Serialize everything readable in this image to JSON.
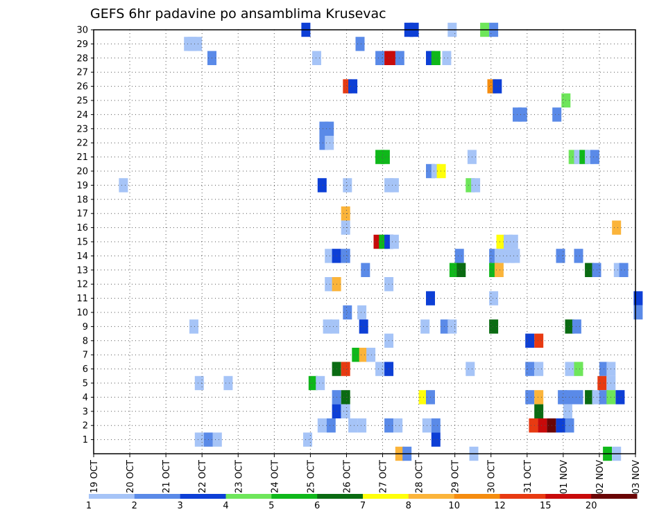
{
  "chart_data": {
    "type": "heatmap",
    "title": "GEFS 6hr padavine po ansamblima Krusevac",
    "xlabel": "",
    "ylabel": "",
    "ylim": [
      0,
      30
    ],
    "x_tick_labels": [
      "19 OCT",
      "20 OCT",
      "21 OCT",
      "22 OCT",
      "23 OCT",
      "24 OCT",
      "25 OCT",
      "26 OCT",
      "27 OCT",
      "28 OCT",
      "29 OCT",
      "30 OCT",
      "31 OCT",
      "01 NOV",
      "02 NOV",
      "03 NOV"
    ],
    "y_tick_labels": [
      "1",
      "2",
      "3",
      "4",
      "5",
      "6",
      "7",
      "8",
      "9",
      "10",
      "11",
      "12",
      "13",
      "14",
      "15",
      "16",
      "17",
      "18",
      "19",
      "20",
      "21",
      "22",
      "23",
      "24",
      "25",
      "26",
      "27",
      "28",
      "29",
      "30"
    ],
    "grid": true,
    "legend_placement": "bottom",
    "legend": {
      "labels": [
        "1",
        "2",
        "3",
        "4",
        "5",
        "6",
        "7",
        "8",
        "10",
        "12",
        "15",
        "20"
      ],
      "colors": [
        "#a6c4f7",
        "#5a8ae8",
        "#0d3fd6",
        "#6ee65a",
        "#0fb81a",
        "#0a6b12",
        "#ffff0a",
        "#fbb43a",
        "#f58c0f",
        "#e83a12",
        "#c80a0a",
        "#6a0505"
      ]
    },
    "cells": [
      {
        "t": 5.8,
        "m": 1,
        "v": 1
      },
      {
        "t": 5.75,
        "m": 30,
        "v": 3
      },
      {
        "t": 2.75,
        "m": 29,
        "v": 1
      },
      {
        "t": 2.6,
        "m": 29,
        "v": 1
      },
      {
        "t": 2.5,
        "m": 29,
        "v": 1
      },
      {
        "t": 3.15,
        "m": 28,
        "v": 2
      },
      {
        "t": 6.05,
        "m": 28,
        "v": 1
      },
      {
        "t": 7.25,
        "m": 29,
        "v": 2
      },
      {
        "t": 8.6,
        "m": 30,
        "v": 3
      },
      {
        "t": 8.75,
        "m": 30,
        "v": 3
      },
      {
        "t": 9.8,
        "m": 30,
        "v": 1
      },
      {
        "t": 10.7,
        "m": 30,
        "v": 4
      },
      {
        "t": 10.95,
        "m": 30,
        "v": 2
      },
      {
        "t": 7.8,
        "m": 28,
        "v": 2
      },
      {
        "t": 8.05,
        "m": 28,
        "v": 19
      },
      {
        "t": 8.2,
        "m": 28,
        "v": 19
      },
      {
        "t": 8.35,
        "m": 28,
        "v": 2
      },
      {
        "t": 9.2,
        "m": 28,
        "v": 3
      },
      {
        "t": 9.35,
        "m": 28,
        "v": 5
      },
      {
        "t": 9.65,
        "m": 28,
        "v": 1
      },
      {
        "t": 6.9,
        "m": 26,
        "v": 12
      },
      {
        "t": 7.05,
        "m": 26,
        "v": 3
      },
      {
        "t": 10.9,
        "m": 26,
        "v": 10
      },
      {
        "t": 11.05,
        "m": 26,
        "v": 3
      },
      {
        "t": 12.95,
        "m": 25,
        "v": 4
      },
      {
        "t": 11.6,
        "m": 24,
        "v": 2
      },
      {
        "t": 11.75,
        "m": 24,
        "v": 2
      },
      {
        "t": 12.7,
        "m": 24,
        "v": 2
      },
      {
        "t": 6.25,
        "m": 23,
        "v": 2
      },
      {
        "t": 6.4,
        "m": 23,
        "v": 2
      },
      {
        "t": 6.25,
        "m": 22,
        "v": 2
      },
      {
        "t": 6.4,
        "m": 22,
        "v": 1
      },
      {
        "t": 7.8,
        "m": 21,
        "v": 5
      },
      {
        "t": 7.95,
        "m": 21,
        "v": 5
      },
      {
        "t": 10.35,
        "m": 21,
        "v": 1
      },
      {
        "t": 13.15,
        "m": 21,
        "v": 4
      },
      {
        "t": 13.3,
        "m": 21,
        "v": 1
      },
      {
        "t": 13.45,
        "m": 21,
        "v": 5
      },
      {
        "t": 13.6,
        "m": 21,
        "v": 1
      },
      {
        "t": 13.75,
        "m": 21,
        "v": 2
      },
      {
        "t": 9.2,
        "m": 20,
        "v": 2
      },
      {
        "t": 9.35,
        "m": 20,
        "v": 1
      },
      {
        "t": 9.5,
        "m": 20,
        "v": 7
      },
      {
        "t": 0.7,
        "m": 19,
        "v": 1
      },
      {
        "t": 6.2,
        "m": 19,
        "v": 3
      },
      {
        "t": 6.9,
        "m": 19,
        "v": 1
      },
      {
        "t": 8.05,
        "m": 19,
        "v": 1
      },
      {
        "t": 8.2,
        "m": 19,
        "v": 1
      },
      {
        "t": 10.3,
        "m": 19,
        "v": 4
      },
      {
        "t": 10.45,
        "m": 19,
        "v": 1
      },
      {
        "t": 6.85,
        "m": 17,
        "v": 8
      },
      {
        "t": 6.85,
        "m": 16,
        "v": 1
      },
      {
        "t": 14.35,
        "m": 16,
        "v": 8
      },
      {
        "t": 7.75,
        "m": 15,
        "v": 15
      },
      {
        "t": 7.9,
        "m": 15,
        "v": 5
      },
      {
        "t": 8.05,
        "m": 15,
        "v": 3
      },
      {
        "t": 8.2,
        "m": 15,
        "v": 1
      },
      {
        "t": 11.15,
        "m": 15,
        "v": 7
      },
      {
        "t": 11.35,
        "m": 15,
        "v": 1
      },
      {
        "t": 11.5,
        "m": 15,
        "v": 1
      },
      {
        "t": 6.4,
        "m": 14,
        "v": 1
      },
      {
        "t": 6.6,
        "m": 14,
        "v": 3
      },
      {
        "t": 6.85,
        "m": 14,
        "v": 2
      },
      {
        "t": 10.0,
        "m": 14,
        "v": 2
      },
      {
        "t": 10.95,
        "m": 14,
        "v": 2
      },
      {
        "t": 11.1,
        "m": 14,
        "v": 1
      },
      {
        "t": 11.25,
        "m": 14,
        "v": 1
      },
      {
        "t": 11.4,
        "m": 14,
        "v": 1
      },
      {
        "t": 11.55,
        "m": 14,
        "v": 1
      },
      {
        "t": 12.8,
        "m": 14,
        "v": 2
      },
      {
        "t": 13.3,
        "m": 14,
        "v": 2
      },
      {
        "t": 7.4,
        "m": 13,
        "v": 2
      },
      {
        "t": 9.85,
        "m": 13,
        "v": 5
      },
      {
        "t": 10.05,
        "m": 13,
        "v": 6
      },
      {
        "t": 10.95,
        "m": 13,
        "v": 5
      },
      {
        "t": 11.1,
        "m": 13,
        "v": 8
      },
      {
        "t": 13.6,
        "m": 13,
        "v": 6
      },
      {
        "t": 13.8,
        "m": 13,
        "v": 2
      },
      {
        "t": 14.4,
        "m": 13,
        "v": 1
      },
      {
        "t": 14.55,
        "m": 13,
        "v": 2
      },
      {
        "t": 6.4,
        "m": 12,
        "v": 1
      },
      {
        "t": 6.6,
        "m": 12,
        "v": 8
      },
      {
        "t": 8.05,
        "m": 12,
        "v": 1
      },
      {
        "t": 9.2,
        "m": 11,
        "v": 3
      },
      {
        "t": 10.95,
        "m": 11,
        "v": 1
      },
      {
        "t": 14.95,
        "m": 11,
        "v": 3
      },
      {
        "t": 6.9,
        "m": 10,
        "v": 2
      },
      {
        "t": 7.3,
        "m": 10,
        "v": 1
      },
      {
        "t": 14.95,
        "m": 10,
        "v": 2
      },
      {
        "t": 2.65,
        "m": 9,
        "v": 1
      },
      {
        "t": 6.35,
        "m": 9,
        "v": 1
      },
      {
        "t": 6.55,
        "m": 9,
        "v": 1
      },
      {
        "t": 7.35,
        "m": 9,
        "v": 3
      },
      {
        "t": 9.05,
        "m": 9,
        "v": 1
      },
      {
        "t": 9.6,
        "m": 9,
        "v": 2
      },
      {
        "t": 9.8,
        "m": 9,
        "v": 1
      },
      {
        "t": 10.95,
        "m": 9,
        "v": 6
      },
      {
        "t": 13.05,
        "m": 9,
        "v": 6
      },
      {
        "t": 13.25,
        "m": 9,
        "v": 2
      },
      {
        "t": 8.05,
        "m": 8,
        "v": 1
      },
      {
        "t": 11.95,
        "m": 8,
        "v": 3
      },
      {
        "t": 12.2,
        "m": 8,
        "v": 12
      },
      {
        "t": 7.15,
        "m": 7,
        "v": 5
      },
      {
        "t": 7.35,
        "m": 7,
        "v": 8
      },
      {
        "t": 7.55,
        "m": 7,
        "v": 1
      },
      {
        "t": 6.6,
        "m": 6,
        "v": 6
      },
      {
        "t": 6.85,
        "m": 6,
        "v": 12
      },
      {
        "t": 7.8,
        "m": 6,
        "v": 1
      },
      {
        "t": 8.05,
        "m": 6,
        "v": 3
      },
      {
        "t": 10.3,
        "m": 6,
        "v": 1
      },
      {
        "t": 11.95,
        "m": 6,
        "v": 2
      },
      {
        "t": 12.2,
        "m": 6,
        "v": 1
      },
      {
        "t": 13.05,
        "m": 6,
        "v": 1
      },
      {
        "t": 13.3,
        "m": 6,
        "v": 4
      },
      {
        "t": 14.0,
        "m": 6,
        "v": 2
      },
      {
        "t": 14.2,
        "m": 6,
        "v": 1
      },
      {
        "t": 2.8,
        "m": 5,
        "v": 1
      },
      {
        "t": 3.6,
        "m": 5,
        "v": 1
      },
      {
        "t": 5.95,
        "m": 5,
        "v": 5
      },
      {
        "t": 6.15,
        "m": 5,
        "v": 1
      },
      {
        "t": 13.95,
        "m": 5,
        "v": 12
      },
      {
        "t": 14.2,
        "m": 5,
        "v": 1
      },
      {
        "t": 6.6,
        "m": 4,
        "v": 2
      },
      {
        "t": 6.85,
        "m": 4,
        "v": 6
      },
      {
        "t": 9.0,
        "m": 4,
        "v": 7
      },
      {
        "t": 9.2,
        "m": 4,
        "v": 2
      },
      {
        "t": 11.95,
        "m": 4,
        "v": 2
      },
      {
        "t": 12.2,
        "m": 4,
        "v": 8
      },
      {
        "t": 12.85,
        "m": 4,
        "v": 2
      },
      {
        "t": 13.05,
        "m": 4,
        "v": 2
      },
      {
        "t": 13.3,
        "m": 4,
        "v": 2
      },
      {
        "t": 13.6,
        "m": 4,
        "v": 6
      },
      {
        "t": 13.8,
        "m": 4,
        "v": 1
      },
      {
        "t": 14.0,
        "m": 4,
        "v": 2
      },
      {
        "t": 14.2,
        "m": 4,
        "v": 4
      },
      {
        "t": 14.45,
        "m": 4,
        "v": 3
      },
      {
        "t": 6.6,
        "m": 3,
        "v": 3
      },
      {
        "t": 6.85,
        "m": 3,
        "v": 1
      },
      {
        "t": 12.2,
        "m": 3,
        "v": 6
      },
      {
        "t": 13.0,
        "m": 3,
        "v": 1
      },
      {
        "t": 6.2,
        "m": 2,
        "v": 1
      },
      {
        "t": 6.45,
        "m": 2,
        "v": 2
      },
      {
        "t": 7.05,
        "m": 2,
        "v": 1
      },
      {
        "t": 7.3,
        "m": 2,
        "v": 1
      },
      {
        "t": 8.05,
        "m": 2,
        "v": 2
      },
      {
        "t": 8.3,
        "m": 2,
        "v": 1
      },
      {
        "t": 9.1,
        "m": 2,
        "v": 1
      },
      {
        "t": 9.35,
        "m": 2,
        "v": 2
      },
      {
        "t": 12.05,
        "m": 2,
        "v": 12
      },
      {
        "t": 12.3,
        "m": 2,
        "v": 15
      },
      {
        "t": 12.55,
        "m": 2,
        "v": 20
      },
      {
        "t": 12.8,
        "m": 2,
        "v": 3
      },
      {
        "t": 13.05,
        "m": 2,
        "v": 2
      },
      {
        "t": 2.8,
        "m": 1,
        "v": 1
      },
      {
        "t": 3.05,
        "m": 1,
        "v": 2
      },
      {
        "t": 3.3,
        "m": 1,
        "v": 1
      },
      {
        "t": 9.35,
        "m": 1,
        "v": 3
      },
      {
        "t": 8.35,
        "m": 0,
        "v": 8
      },
      {
        "t": 8.55,
        "m": 0,
        "v": 2
      },
      {
        "t": 10.4,
        "m": 0,
        "v": 1
      },
      {
        "t": 14.1,
        "m": 0,
        "v": 5
      },
      {
        "t": 14.35,
        "m": 0,
        "v": 1
      }
    ]
  }
}
